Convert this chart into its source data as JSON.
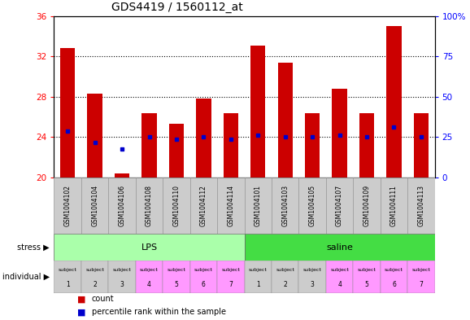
{
  "title": "GDS4419 / 1560112_at",
  "samples": [
    "GSM1004102",
    "GSM1004104",
    "GSM1004106",
    "GSM1004108",
    "GSM1004110",
    "GSM1004112",
    "GSM1004114",
    "GSM1004101",
    "GSM1004103",
    "GSM1004105",
    "GSM1004107",
    "GSM1004109",
    "GSM1004111",
    "GSM1004113"
  ],
  "bar_heights": [
    32.8,
    28.3,
    20.4,
    26.4,
    25.3,
    27.8,
    26.4,
    33.1,
    31.4,
    26.4,
    28.8,
    26.4,
    35.0,
    26.4
  ],
  "blue_dot_y": [
    24.6,
    23.5,
    22.8,
    24.0,
    23.8,
    24.0,
    23.8,
    24.2,
    24.0,
    24.0,
    24.2,
    24.0,
    25.0,
    24.0
  ],
  "ylim": [
    20,
    36
  ],
  "yticks_left": [
    20,
    24,
    28,
    32,
    36
  ],
  "yticks_right": [
    0,
    25,
    50,
    75,
    100
  ],
  "bar_color": "#cc0000",
  "dot_color": "#0000cc",
  "bar_bottom": 20,
  "stress_groups": [
    {
      "label": "LPS",
      "start": 0,
      "end": 7,
      "color": "#aaffaa"
    },
    {
      "label": "saline",
      "start": 7,
      "end": 14,
      "color": "#44dd44"
    }
  ],
  "individual_colors": [
    "#cccccc",
    "#cccccc",
    "#cccccc",
    "#ff99ff",
    "#ff99ff",
    "#ff99ff",
    "#ff99ff",
    "#cccccc",
    "#cccccc",
    "#cccccc",
    "#ff99ff",
    "#ff99ff",
    "#ff99ff",
    "#ff99ff"
  ],
  "individual_labels_top": [
    "subject",
    "subject",
    "subject",
    "subject",
    "subject",
    "subject",
    "subject",
    "subject",
    "subject",
    "subject",
    "subject",
    "subject",
    "subject",
    "subject"
  ],
  "individual_labels_bottom": [
    "1",
    "2",
    "3",
    "4",
    "5",
    "6",
    "7",
    "1",
    "2",
    "3",
    "4",
    "5",
    "6",
    "7"
  ],
  "bg_color": "#ffffff",
  "plot_bg_color": "#ffffff",
  "sample_bg_color": "#cccccc",
  "grid_color": "#000000",
  "title_fontsize": 10
}
